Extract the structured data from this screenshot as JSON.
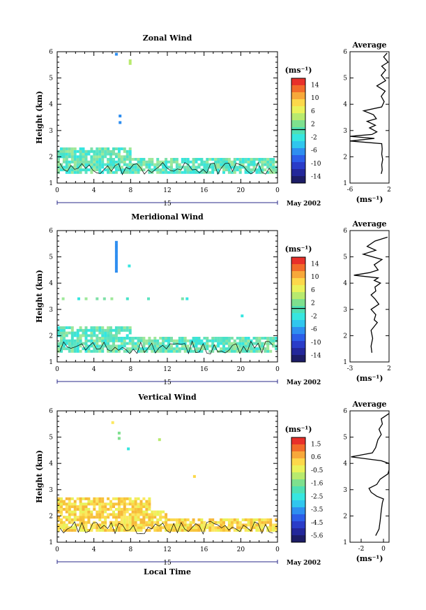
{
  "figure": {
    "xlabel": "Local Time",
    "date_label": "May 2002",
    "day_label": "15",
    "avg_title": "Average"
  },
  "chart_data": [
    {
      "type": "heatmap",
      "title": "Zonal Wind",
      "ylabel": "Height (km)",
      "ylim": [
        1,
        6
      ],
      "yticks": [
        1,
        2,
        3,
        4,
        5,
        6
      ],
      "xticks": [
        "0",
        "4",
        "8",
        "12",
        "16",
        "20",
        "0"
      ],
      "xlim": [
        0,
        24
      ],
      "colorbar": {
        "unit": "(ms⁻¹)",
        "ticks": [
          "14",
          "10",
          "6",
          "2",
          "-2",
          "-6",
          "-10",
          "-14"
        ],
        "zero_line_label": "2"
      },
      "average_profile": {
        "x_label": "(ms⁻¹)",
        "xticks": [
          "-6",
          "2"
        ],
        "xlim": [
          -6,
          2
        ],
        "yticks": [
          1,
          2,
          3,
          4,
          5,
          6
        ],
        "points": [
          [
            0.4,
            1.35
          ],
          [
            0.6,
            1.5
          ],
          [
            0.5,
            1.7
          ],
          [
            0.7,
            1.9
          ],
          [
            0.5,
            2.1
          ],
          [
            0.6,
            2.3
          ],
          [
            0.5,
            2.5
          ],
          [
            -6.5,
            2.6
          ],
          [
            -1,
            2.7
          ],
          [
            -6,
            2.78
          ],
          [
            -1.5,
            2.85
          ],
          [
            -0.5,
            2.95
          ],
          [
            -2,
            3.1
          ],
          [
            -0.8,
            3.2
          ],
          [
            -2.5,
            3.35
          ],
          [
            -0.6,
            3.45
          ],
          [
            -1.2,
            3.6
          ],
          [
            -3.2,
            3.75
          ],
          [
            0.5,
            3.9
          ],
          [
            1,
            4.1
          ],
          [
            0.4,
            4.3
          ],
          [
            1.2,
            4.5
          ],
          [
            -0.5,
            4.7
          ],
          [
            1.3,
            4.9
          ],
          [
            0.4,
            5.1
          ],
          [
            1.3,
            5.3
          ],
          [
            0.5,
            5.45
          ],
          [
            1.8,
            5.6
          ],
          [
            0.9,
            5.8
          ],
          [
            1.6,
            5.95
          ]
        ]
      }
    },
    {
      "type": "heatmap",
      "title": "Meridional Wind",
      "ylabel": "Height (km)",
      "ylim": [
        1,
        6
      ],
      "yticks": [
        1,
        2,
        3,
        4,
        5,
        6
      ],
      "xticks": [
        "0",
        "4",
        "8",
        "12",
        "16",
        "20",
        "0"
      ],
      "xlim": [
        0,
        24
      ],
      "colorbar": {
        "unit": "(ms⁻¹)",
        "ticks": [
          "14",
          "10",
          "6",
          "2",
          "-2",
          "-6",
          "-10",
          "-14"
        ],
        "zero_line_label": "2"
      },
      "average_profile": {
        "x_label": "(ms⁻¹)",
        "xticks": [
          "-3",
          "2"
        ],
        "xlim": [
          -3,
          2
        ],
        "yticks": [
          1,
          2,
          3,
          4,
          5,
          6
        ],
        "points": [
          [
            -0.2,
            1.35
          ],
          [
            -0.3,
            1.6
          ],
          [
            -0.1,
            1.9
          ],
          [
            -0.3,
            2.2
          ],
          [
            0.5,
            2.5
          ],
          [
            0.1,
            2.6
          ],
          [
            0.3,
            2.8
          ],
          [
            -0.3,
            3.0
          ],
          [
            0.7,
            3.2
          ],
          [
            0.2,
            3.4
          ],
          [
            -0.3,
            3.55
          ],
          [
            0.3,
            3.7
          ],
          [
            0.2,
            3.85
          ],
          [
            0.9,
            4.0
          ],
          [
            0.1,
            4.1
          ],
          [
            0.6,
            4.2
          ],
          [
            -2.5,
            4.3
          ],
          [
            -0.5,
            4.4
          ],
          [
            0.6,
            4.5
          ],
          [
            0.1,
            4.7
          ],
          [
            1.1,
            4.9
          ],
          [
            -1.3,
            5.1
          ],
          [
            0.3,
            5.25
          ],
          [
            -0.8,
            5.4
          ],
          [
            0.2,
            5.6
          ],
          [
            1.8,
            5.75
          ]
        ]
      }
    },
    {
      "type": "heatmap",
      "title": "Vertical Wind",
      "ylabel": "Height (km)",
      "ylim": [
        1,
        6
      ],
      "yticks": [
        1,
        2,
        3,
        4,
        5,
        6
      ],
      "xticks": [
        "0",
        "4",
        "8",
        "12",
        "16",
        "20",
        "0"
      ],
      "xlim": [
        0,
        24
      ],
      "colorbar": {
        "unit": "(ms⁻¹)",
        "ticks": [
          "1.5",
          "0.6",
          "-0.5",
          "-1.6",
          "-2.5",
          "-3.5",
          "-4.5",
          "-5.6"
        ],
        "zero_line_label": null
      },
      "average_profile": {
        "x_label": "(ms⁻¹)",
        "xticks": [
          "-2",
          "0"
        ],
        "xlim": [
          -3,
          0.5
        ],
        "yticks": [
          1,
          2,
          3,
          4,
          5,
          6
        ],
        "points": [
          [
            -0.7,
            1.25
          ],
          [
            -0.4,
            1.5
          ],
          [
            -0.3,
            1.8
          ],
          [
            -0.2,
            2.2
          ],
          [
            -0.1,
            2.5
          ],
          [
            0,
            2.65
          ],
          [
            -0.6,
            2.75
          ],
          [
            -1.1,
            2.9
          ],
          [
            -1.3,
            3.05
          ],
          [
            -0.6,
            3.2
          ],
          [
            -0.3,
            3.4
          ],
          [
            0.4,
            3.6
          ],
          [
            0.6,
            3.75
          ],
          [
            0.5,
            4.0
          ],
          [
            -0.2,
            4.1
          ],
          [
            -2.9,
            4.25
          ],
          [
            -1.0,
            4.4
          ],
          [
            -0.7,
            4.6
          ],
          [
            -0.5,
            4.9
          ],
          [
            -0.2,
            5.1
          ],
          [
            -0.4,
            5.3
          ],
          [
            -0.1,
            5.5
          ],
          [
            -0.2,
            5.7
          ],
          [
            0.5,
            5.9
          ]
        ]
      }
    }
  ],
  "colors": {
    "zonal_scale": [
      "#e8302a",
      "#f26b2a",
      "#f7a83a",
      "#fcd84a",
      "#eaf25a",
      "#b8ea6e",
      "#7ee08e",
      "#4fe0b4",
      "#36e6e0",
      "#30c6ee",
      "#2e8ef0",
      "#2c5ee8",
      "#2a3cc8",
      "#23279a",
      "#1c1c66"
    ],
    "vertical_scale": [
      "#e8302a",
      "#f26b2a",
      "#f7a83a",
      "#fcd84a",
      "#eaf25a",
      "#b8ea6e",
      "#7ee08e",
      "#4fe0b4",
      "#36e6e0",
      "#30c6ee",
      "#2e8ef0",
      "#2c5ee8",
      "#2a3cc8",
      "#23279a",
      "#1c1c66"
    ]
  }
}
